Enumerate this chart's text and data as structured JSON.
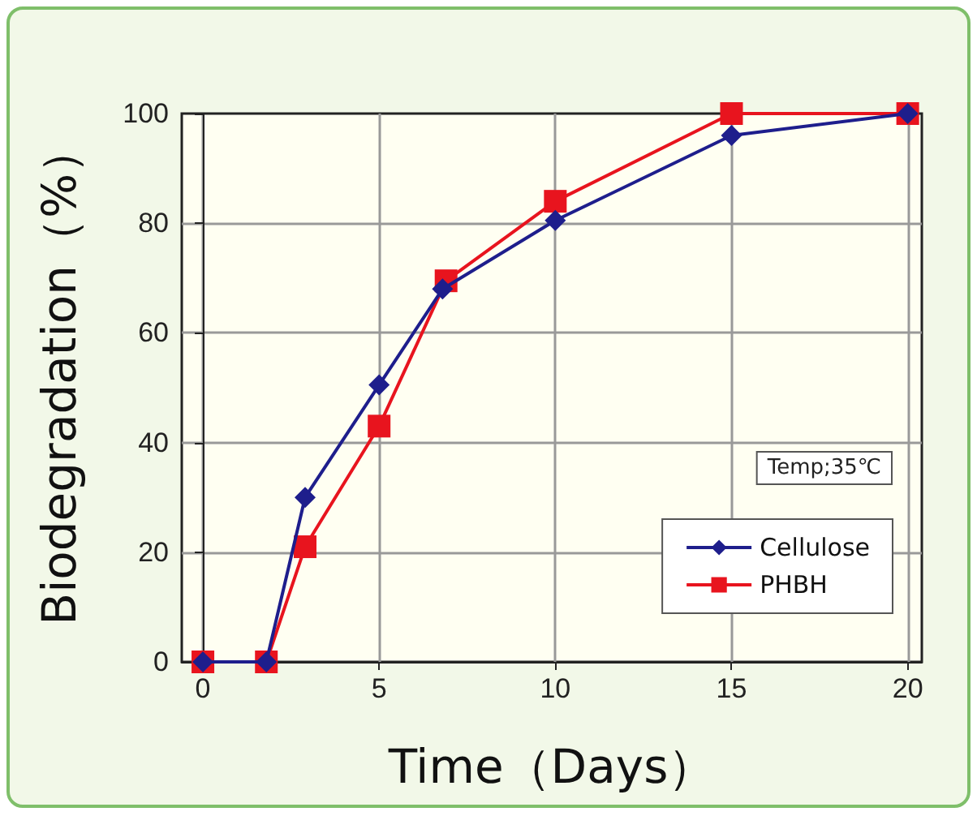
{
  "chart_data": {
    "type": "line",
    "xlabel": "Time（Days）",
    "ylabel": "Biodegradation（%）",
    "annotations": [
      "Temp;35℃"
    ],
    "xlim": [
      -0.6,
      20.4
    ],
    "xticks": [
      0,
      5,
      10,
      15,
      20
    ],
    "ylim": [
      0,
      100
    ],
    "yticks": [
      0,
      20,
      40,
      60,
      80,
      100
    ],
    "grid": true,
    "legend": "bottom right",
    "series": [
      {
        "name": "Cellulose",
        "color": "#1e1e8c",
        "marker": "diamond",
        "x": [
          0,
          1.8,
          2.9,
          5,
          6.8,
          10,
          15,
          20
        ],
        "values": [
          0,
          0,
          30,
          50.5,
          68,
          80.5,
          96,
          100
        ]
      },
      {
        "name": "PHBH",
        "color": "#e8141e",
        "marker": "square",
        "x": [
          0,
          1.8,
          2.9,
          5,
          6.9,
          10,
          15,
          20
        ],
        "values": [
          0,
          0,
          21,
          43,
          69.5,
          84,
          100,
          100
        ]
      }
    ]
  }
}
